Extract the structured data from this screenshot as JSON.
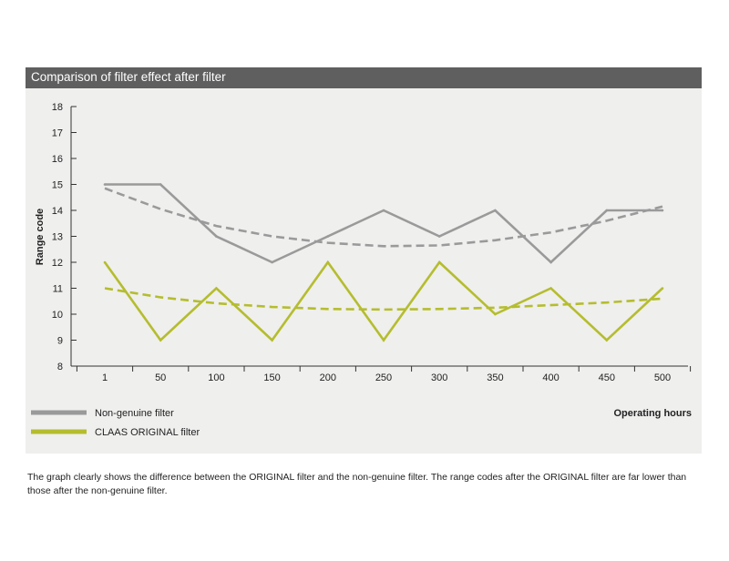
{
  "chart_data": {
    "type": "line",
    "title": "Comparison of filter effect after filter",
    "xlabel": "Operating hours",
    "ylabel": "Range code",
    "categories": [
      "1",
      "50",
      "100",
      "150",
      "200",
      "250",
      "300",
      "350",
      "400",
      "450",
      "500"
    ],
    "ylim": [
      8,
      18
    ],
    "yticks": [
      "8",
      "9",
      "10",
      "11",
      "12",
      "13",
      "14",
      "15",
      "16",
      "17",
      "18"
    ],
    "grid": false,
    "legend_position": "bottom-left",
    "series": [
      {
        "name": "Non-genuine filter",
        "color": "#9a9a9a",
        "values": [
          15,
          15,
          13,
          12,
          13,
          14,
          13,
          14,
          12,
          14,
          14
        ],
        "trend": [
          14.85,
          14.05,
          13.4,
          13.0,
          12.75,
          12.62,
          12.65,
          12.85,
          13.15,
          13.6,
          14.15
        ]
      },
      {
        "name": "CLAAS ORIGINAL filter",
        "color": "#b5bd2e",
        "values": [
          12,
          9,
          11,
          9,
          12,
          9,
          12,
          10,
          11,
          9,
          11
        ],
        "trend": [
          11.0,
          10.65,
          10.42,
          10.28,
          10.2,
          10.18,
          10.2,
          10.25,
          10.35,
          10.45,
          10.6
        ]
      }
    ]
  },
  "caption": "The graph clearly shows the difference between the ORIGINAL filter and the non-genuine filter. The range codes after the ORIGINAL filter are far lower than those after the non-genuine filter."
}
